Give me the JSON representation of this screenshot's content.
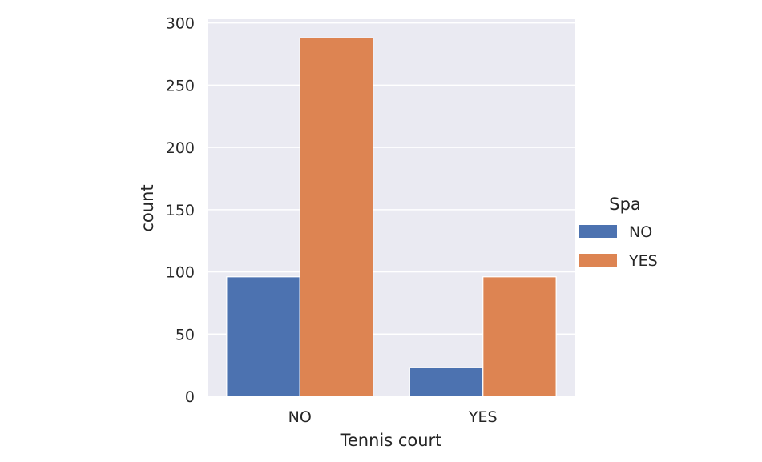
{
  "chart_data": {
    "type": "bar",
    "xlabel": "Tennis court",
    "ylabel": "count",
    "categories": [
      "NO",
      "YES"
    ],
    "series": [
      {
        "name": "NO",
        "color": "#4c72b0",
        "values": [
          96,
          23
        ]
      },
      {
        "name": "YES",
        "color": "#dd8452",
        "values": [
          288,
          96
        ]
      }
    ],
    "ylim": [
      0,
      303
    ],
    "yticks": [
      0,
      50,
      100,
      150,
      200,
      250,
      300
    ],
    "grid": true,
    "legend": {
      "title": "Spa",
      "placement": "right"
    }
  }
}
